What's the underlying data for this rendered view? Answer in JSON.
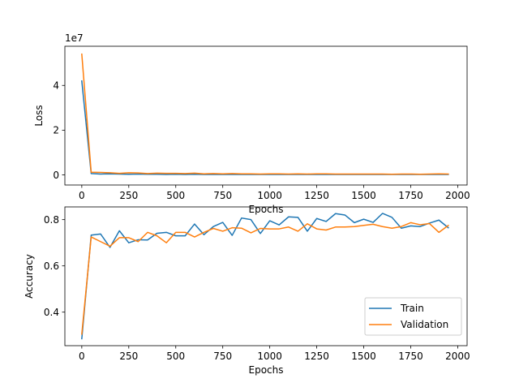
{
  "chart_data": [
    {
      "type": "line",
      "id": "loss",
      "xlabel": "Epochs",
      "ylabel": "Loss",
      "offset_label": "1e7",
      "xlim": [
        -90,
        2050
      ],
      "ylim": [
        -0.45,
        5.75
      ],
      "xticks": [
        0,
        250,
        500,
        750,
        1000,
        1250,
        1500,
        1750,
        2000
      ],
      "yticks": [
        0,
        2,
        4
      ],
      "ytick_format": "int",
      "series": [
        {
          "color": "#1f77b4",
          "x": [
            0,
            50,
            100,
            150,
            200,
            250,
            300,
            350,
            400,
            450,
            500,
            550,
            600,
            650,
            700,
            750,
            800,
            850,
            900,
            950,
            1000,
            1050,
            1100,
            1150,
            1200,
            1250,
            1300,
            1350,
            1400,
            1450,
            1500,
            1550,
            1600,
            1650,
            1700,
            1750,
            1800,
            1850,
            1900,
            1950
          ],
          "values": [
            4.2,
            0.06,
            0.04,
            0.05,
            0.04,
            0.03,
            0.04,
            0.03,
            0.03,
            0.02,
            0.03,
            0.02,
            0.03,
            0.02,
            0.02,
            0.02,
            0.02,
            0.02,
            0.02,
            0.02,
            0.02,
            0.02,
            0.02,
            0.02,
            0.02,
            0.02,
            0.02,
            0.02,
            0.02,
            0.02,
            0.02,
            0.02,
            0.02,
            0.02,
            0.02,
            0.02,
            0.02,
            0.02,
            0.02,
            0.02
          ]
        },
        {
          "color": "#ff7f0e",
          "x": [
            0,
            50,
            100,
            150,
            200,
            250,
            300,
            350,
            400,
            450,
            500,
            550,
            600,
            650,
            700,
            750,
            800,
            850,
            900,
            950,
            1000,
            1050,
            1100,
            1150,
            1200,
            1250,
            1300,
            1350,
            1400,
            1450,
            1500,
            1550,
            1600,
            1650,
            1700,
            1750,
            1800,
            1850,
            1900,
            1950
          ],
          "values": [
            5.4,
            0.12,
            0.11,
            0.1,
            0.07,
            0.1,
            0.09,
            0.06,
            0.08,
            0.07,
            0.07,
            0.06,
            0.08,
            0.05,
            0.06,
            0.05,
            0.06,
            0.05,
            0.05,
            0.04,
            0.05,
            0.05,
            0.04,
            0.05,
            0.04,
            0.05,
            0.05,
            0.04,
            0.04,
            0.04,
            0.04,
            0.04,
            0.04,
            0.03,
            0.04,
            0.04,
            0.03,
            0.04,
            0.05,
            0.04
          ]
        }
      ]
    },
    {
      "type": "line",
      "id": "accuracy",
      "xlabel": "Epochs",
      "ylabel": "Accuracy",
      "xlim": [
        -90,
        2050
      ],
      "ylim": [
        0.255,
        0.855
      ],
      "xticks": [
        0,
        250,
        500,
        750,
        1000,
        1250,
        1500,
        1750,
        2000
      ],
      "yticks": [
        0.4,
        0.6,
        0.8
      ],
      "ytick_format": "1dp",
      "legend": {
        "position": "lower-right",
        "entries": [
          "Train",
          "Validation"
        ]
      },
      "series": [
        {
          "name": "Train",
          "color": "#1f77b4",
          "x": [
            0,
            50,
            100,
            150,
            200,
            250,
            300,
            350,
            400,
            450,
            500,
            550,
            600,
            650,
            700,
            750,
            800,
            850,
            900,
            950,
            1000,
            1050,
            1100,
            1150,
            1200,
            1250,
            1300,
            1350,
            1400,
            1450,
            1500,
            1550,
            1600,
            1650,
            1700,
            1750,
            1800,
            1850,
            1900,
            1950
          ],
          "values": [
            0.285,
            0.733,
            0.738,
            0.68,
            0.752,
            0.7,
            0.713,
            0.712,
            0.741,
            0.745,
            0.73,
            0.73,
            0.781,
            0.735,
            0.77,
            0.788,
            0.732,
            0.807,
            0.8,
            0.74,
            0.795,
            0.777,
            0.812,
            0.81,
            0.75,
            0.805,
            0.792,
            0.826,
            0.82,
            0.787,
            0.802,
            0.788,
            0.827,
            0.81,
            0.763,
            0.773,
            0.77,
            0.785,
            0.798,
            0.765
          ]
        },
        {
          "name": "Validation",
          "color": "#ff7f0e",
          "x": [
            0,
            50,
            100,
            150,
            200,
            250,
            300,
            350,
            400,
            450,
            500,
            550,
            600,
            650,
            700,
            750,
            800,
            850,
            900,
            950,
            1000,
            1050,
            1100,
            1150,
            1200,
            1250,
            1300,
            1350,
            1400,
            1450,
            1500,
            1550,
            1600,
            1650,
            1700,
            1750,
            1800,
            1850,
            1900,
            1950
          ],
          "values": [
            0.305,
            0.725,
            0.705,
            0.685,
            0.722,
            0.722,
            0.705,
            0.745,
            0.73,
            0.7,
            0.745,
            0.745,
            0.725,
            0.745,
            0.762,
            0.75,
            0.765,
            0.763,
            0.743,
            0.762,
            0.76,
            0.76,
            0.768,
            0.75,
            0.782,
            0.76,
            0.755,
            0.768,
            0.768,
            0.77,
            0.775,
            0.78,
            0.77,
            0.763,
            0.77,
            0.787,
            0.778,
            0.783,
            0.745,
            0.775
          ]
        }
      ]
    }
  ]
}
